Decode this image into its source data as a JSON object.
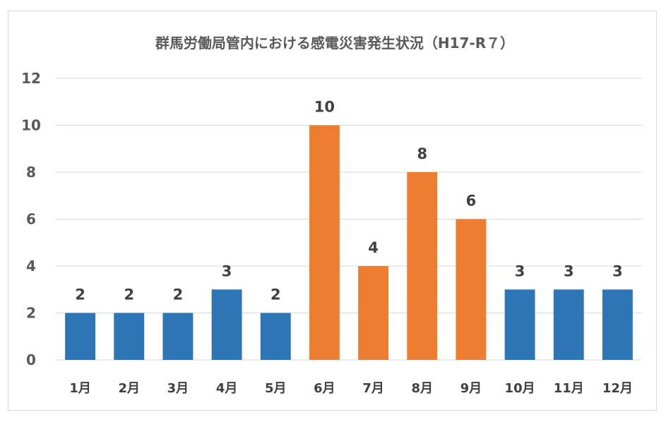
{
  "chart_data": {
    "type": "bar",
    "title": "群馬労働局管内における感電災害発生状況（H17-R７）",
    "xlabel": "",
    "ylabel": "",
    "categories": [
      "1月",
      "2月",
      "3月",
      "4月",
      "5月",
      "6月",
      "7月",
      "8月",
      "9月",
      "10月",
      "11月",
      "12月"
    ],
    "values": [
      2,
      2,
      2,
      3,
      2,
      10,
      4,
      8,
      6,
      3,
      3,
      3
    ],
    "bar_colors": [
      "#2e75b6",
      "#2e75b6",
      "#2e75b6",
      "#2e75b6",
      "#2e75b6",
      "#ed7d31",
      "#ed7d31",
      "#ed7d31",
      "#ed7d31",
      "#2e75b6",
      "#2e75b6",
      "#2e75b6"
    ],
    "ylim": [
      0,
      12
    ],
    "yticks": [
      0,
      2,
      4,
      6,
      8,
      10,
      12
    ],
    "grid": true,
    "legend": "none",
    "data_labels": true
  }
}
